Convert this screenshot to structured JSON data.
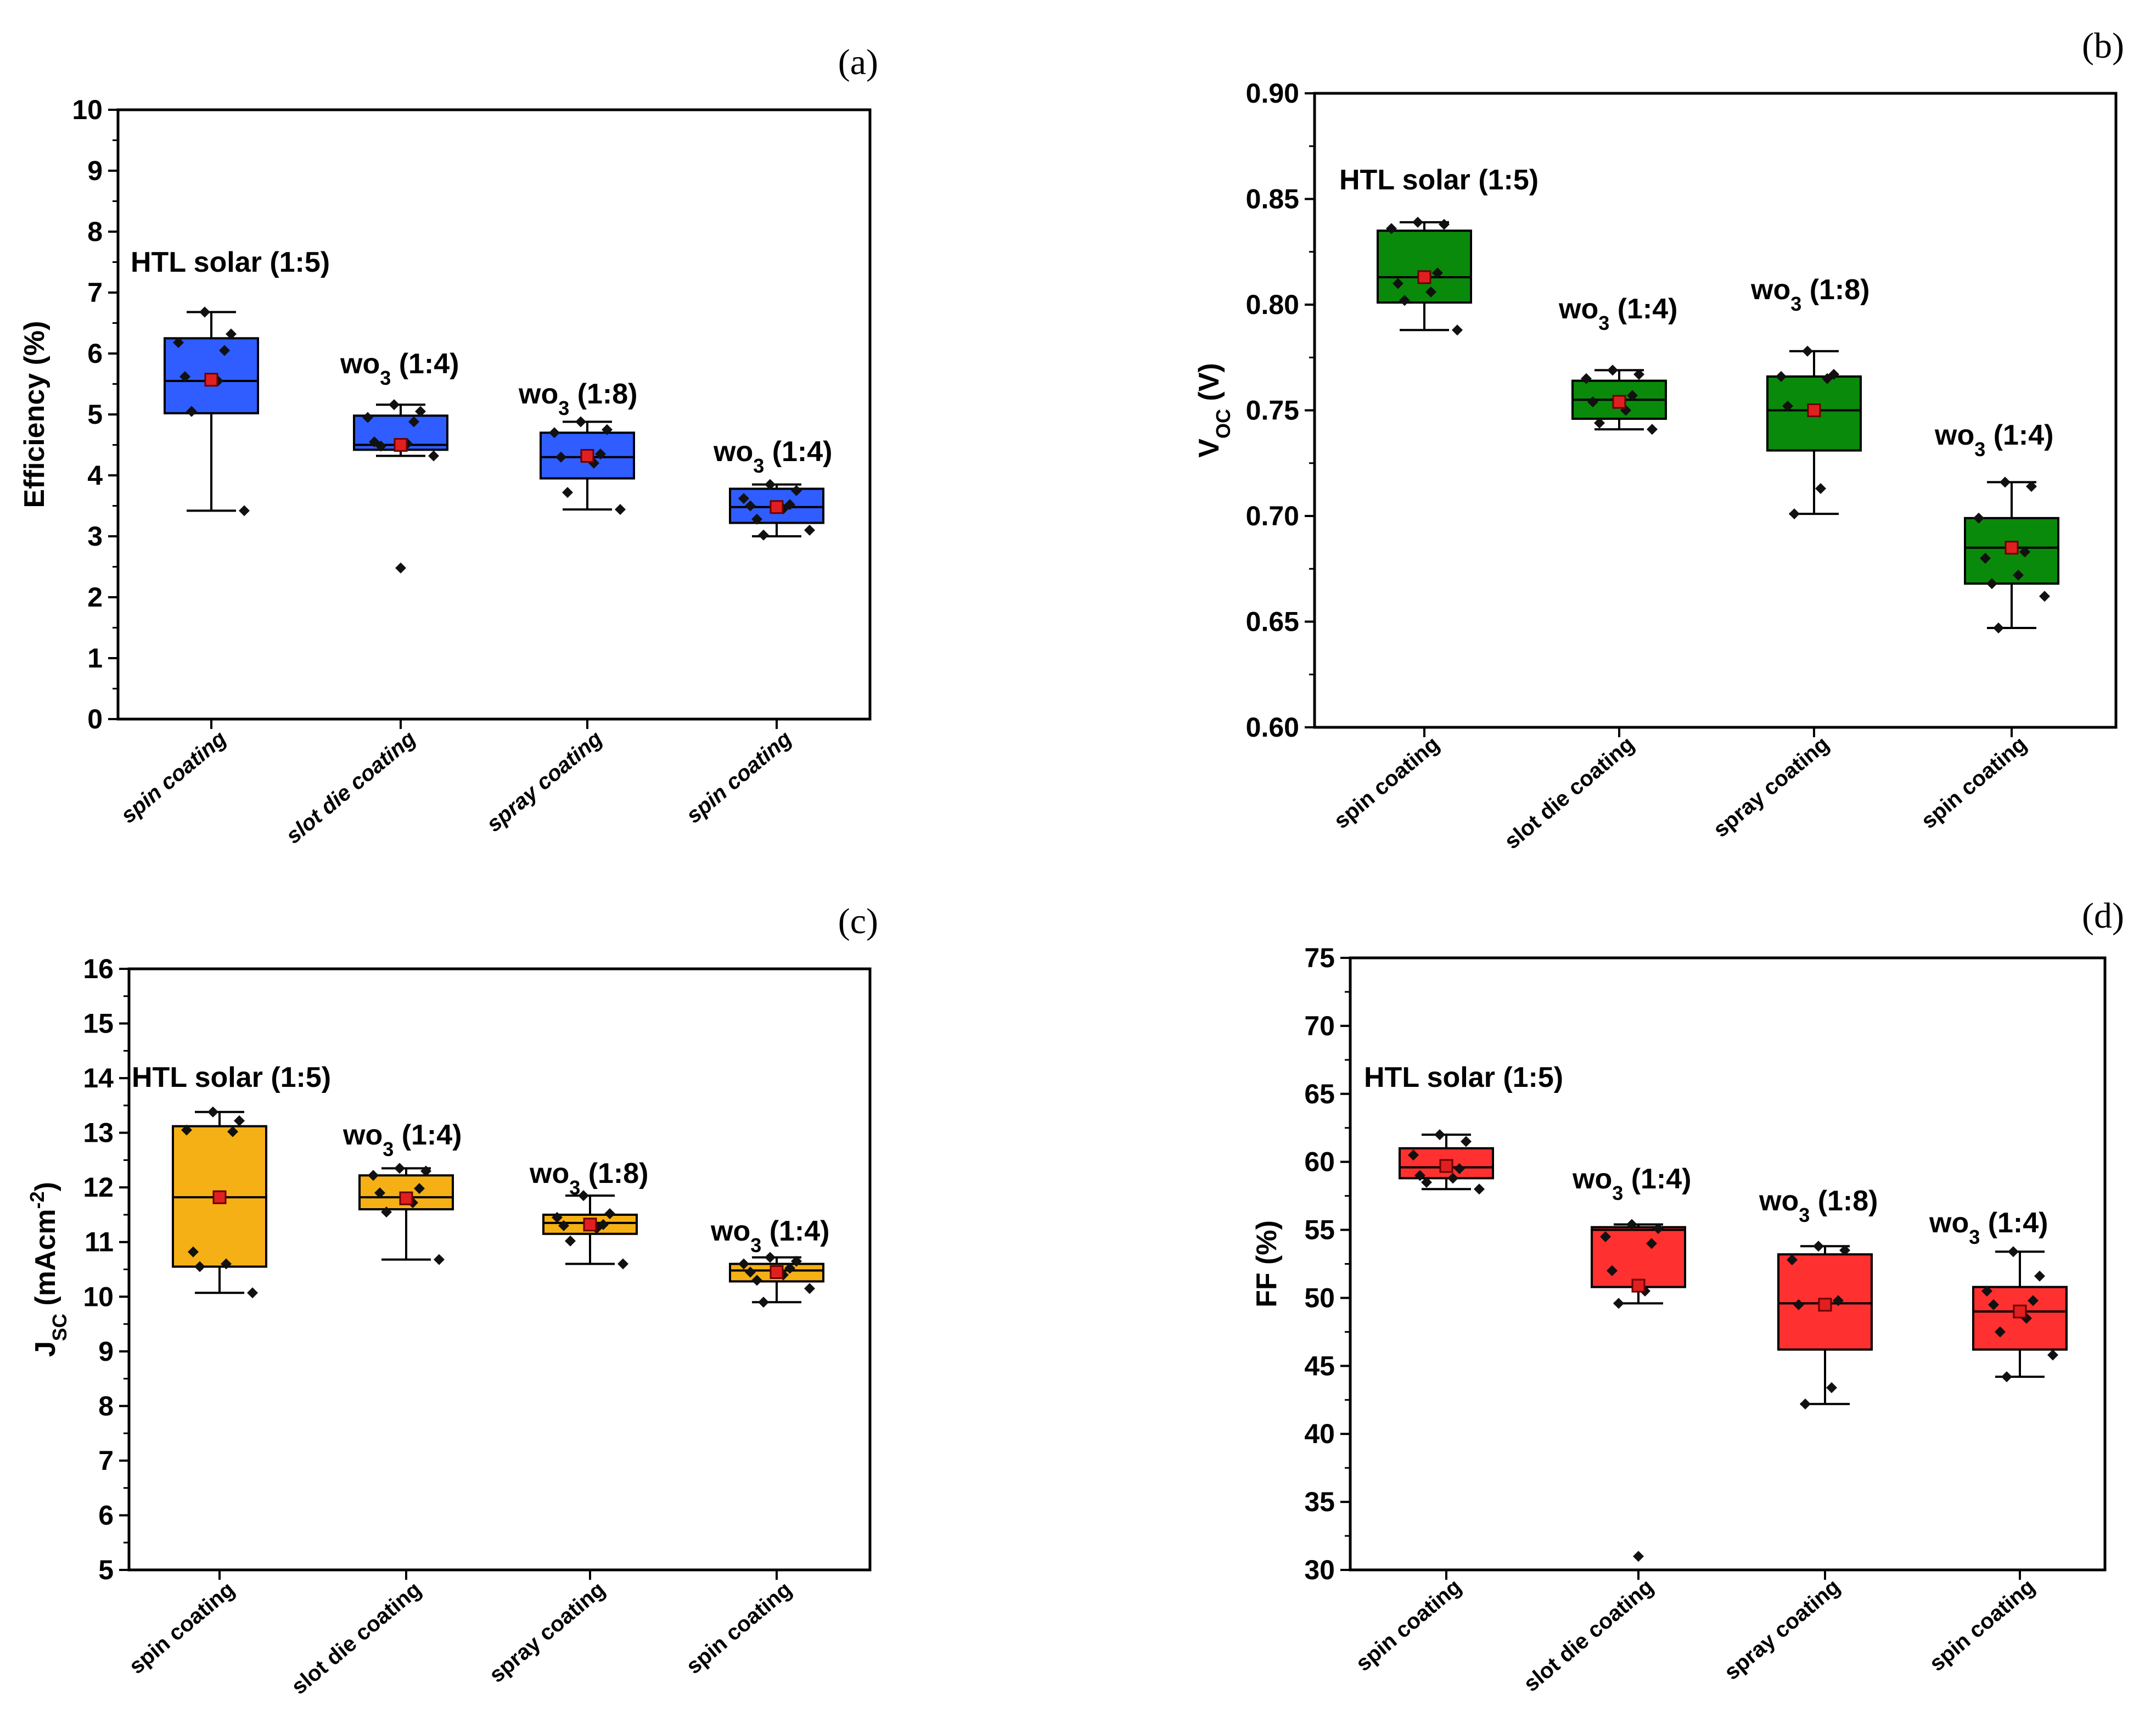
{
  "chart_data": [
    {
      "panel": "(a)",
      "type": "box",
      "ylabel": "Efficiency (%)",
      "ylim": [
        0,
        10
      ],
      "yticks": [
        "0",
        "1",
        "2",
        "3",
        "4",
        "5",
        "6",
        "7",
        "8",
        "9",
        "10"
      ],
      "categories": [
        "spin coating",
        "slot die coating",
        "spray coating",
        "spin coating"
      ],
      "category_style": "italic",
      "group_labels": [
        {
          "main": "HTL solar (1:5)",
          "sub": "",
          "suffix": ""
        },
        {
          "main": "wo",
          "sub": "3",
          "suffix": " (1:4)"
        },
        {
          "main": "wo",
          "sub": "3",
          "suffix": " (1:8)"
        },
        {
          "main": "wo",
          "sub": "3",
          "suffix": " (1:4)"
        }
      ],
      "box_color": "#2f5dff",
      "boxes": [
        {
          "q1": 5.02,
          "median": 5.55,
          "q3": 6.25,
          "mean": 5.57,
          "whisker_low": 3.42,
          "whisker_high": 6.68,
          "outliers": [],
          "points": [
            6.68,
            6.32,
            6.18,
            6.05,
            5.62,
            5.55,
            5.05,
            3.42
          ]
        },
        {
          "q1": 4.42,
          "median": 4.5,
          "q3": 4.98,
          "mean": 4.5,
          "whisker_low": 4.32,
          "whisker_high": 5.16,
          "outliers": [
            2.48
          ],
          "points": [
            5.16,
            5.05,
            4.95,
            4.88,
            4.55,
            4.52,
            4.48,
            4.32,
            2.48
          ]
        },
        {
          "q1": 3.95,
          "median": 4.3,
          "q3": 4.7,
          "mean": 4.32,
          "whisker_low": 3.44,
          "whisker_high": 4.88,
          "outliers": [],
          "points": [
            4.88,
            4.75,
            4.7,
            4.35,
            4.3,
            4.2,
            3.72,
            3.44
          ]
        },
        {
          "q1": 3.22,
          "median": 3.48,
          "q3": 3.78,
          "mean": 3.48,
          "whisker_low": 3.0,
          "whisker_high": 3.85,
          "outliers": [],
          "points": [
            3.85,
            3.75,
            3.62,
            3.52,
            3.5,
            3.45,
            3.28,
            3.1,
            3.02
          ]
        }
      ]
    },
    {
      "panel": "(b)",
      "type": "box",
      "ylabel_main": "V",
      "ylabel_sub": "OC",
      "ylabel_suffix": " (V)",
      "ylim": [
        0.6,
        0.9
      ],
      "yticks": [
        "0.60",
        "0.65",
        "0.70",
        "0.75",
        "0.80",
        "0.85",
        "0.90"
      ],
      "categories": [
        "spin coating",
        "slot die coating",
        "spray coating",
        "spin coating"
      ],
      "category_style": "normal",
      "group_labels": [
        {
          "main": "HTL solar (1:5)",
          "sub": "",
          "suffix": ""
        },
        {
          "main": "wo",
          "sub": "3",
          "suffix": " (1:4)"
        },
        {
          "main": "wo",
          "sub": "3",
          "suffix": " (1:8)"
        },
        {
          "main": "wo",
          "sub": "3",
          "suffix": " (1:4)"
        }
      ],
      "box_color": "#0a8a0a",
      "boxes": [
        {
          "q1": 0.801,
          "median": 0.813,
          "q3": 0.835,
          "mean": 0.813,
          "whisker_low": 0.788,
          "whisker_high": 0.839,
          "outliers": [],
          "points": [
            0.839,
            0.838,
            0.836,
            0.815,
            0.81,
            0.806,
            0.802,
            0.788
          ]
        },
        {
          "q1": 0.746,
          "median": 0.755,
          "q3": 0.764,
          "mean": 0.754,
          "whisker_low": 0.741,
          "whisker_high": 0.769,
          "outliers": [],
          "points": [
            0.769,
            0.767,
            0.765,
            0.757,
            0.754,
            0.75,
            0.744,
            0.741
          ]
        },
        {
          "q1": 0.731,
          "median": 0.75,
          "q3": 0.766,
          "mean": 0.75,
          "whisker_low": 0.701,
          "whisker_high": 0.778,
          "outliers": [],
          "points": [
            0.778,
            0.767,
            0.766,
            0.765,
            0.752,
            0.713,
            0.701
          ]
        },
        {
          "q1": 0.668,
          "median": 0.685,
          "q3": 0.699,
          "mean": 0.685,
          "whisker_low": 0.647,
          "whisker_high": 0.716,
          "outliers": [],
          "points": [
            0.716,
            0.714,
            0.699,
            0.683,
            0.68,
            0.672,
            0.668,
            0.662,
            0.647
          ]
        }
      ]
    },
    {
      "panel": "(c)",
      "type": "box",
      "ylabel_main": "J",
      "ylabel_sub": "SC",
      "ylabel_suffix": " (mAcm",
      "ylabel_sup": "-2",
      "ylabel_end": ")",
      "ylim": [
        5,
        16
      ],
      "yticks": [
        "5",
        "6",
        "7",
        "8",
        "9",
        "10",
        "11",
        "12",
        "13",
        "14",
        "15",
        "16"
      ],
      "categories": [
        "spin coating",
        "slot die coating",
        "spray coating",
        "spin coating"
      ],
      "category_style": "normal",
      "group_labels": [
        {
          "main": "HTL solar (1:5)",
          "sub": "",
          "suffix": ""
        },
        {
          "main": "wo",
          "sub": "3",
          "suffix": " (1:4)"
        },
        {
          "main": "wo",
          "sub": "3",
          "suffix": " (1:8)"
        },
        {
          "main": "wo",
          "sub": "3",
          "suffix": " (1:4)"
        }
      ],
      "box_color": "#f5b015",
      "boxes": [
        {
          "q1": 10.55,
          "median": 11.82,
          "q3": 13.12,
          "mean": 11.82,
          "whisker_low": 10.07,
          "whisker_high": 13.38,
          "outliers": [],
          "points": [
            13.38,
            13.22,
            13.05,
            13.02,
            10.82,
            10.6,
            10.55,
            10.07
          ]
        },
        {
          "q1": 11.6,
          "median": 11.82,
          "q3": 12.22,
          "mean": 11.8,
          "whisker_low": 10.68,
          "whisker_high": 12.35,
          "outliers": [],
          "points": [
            12.35,
            12.3,
            12.22,
            11.98,
            11.9,
            11.72,
            11.55,
            10.68
          ]
        },
        {
          "q1": 11.15,
          "median": 11.35,
          "q3": 11.5,
          "mean": 11.32,
          "whisker_low": 10.6,
          "whisker_high": 11.85,
          "outliers": [],
          "points": [
            11.85,
            11.52,
            11.45,
            11.32,
            11.3,
            11.25,
            11.02,
            10.6
          ]
        },
        {
          "q1": 10.28,
          "median": 10.48,
          "q3": 10.6,
          "mean": 10.45,
          "whisker_low": 9.9,
          "whisker_high": 10.72,
          "outliers": [],
          "points": [
            10.72,
            10.65,
            10.6,
            10.52,
            10.45,
            10.4,
            10.3,
            10.15,
            9.9
          ]
        }
      ]
    },
    {
      "panel": "(d)",
      "type": "box",
      "ylabel": "FF (%)",
      "ylim": [
        30,
        75
      ],
      "yticks": [
        "30",
        "35",
        "40",
        "45",
        "50",
        "55",
        "60",
        "65",
        "70",
        "75"
      ],
      "categories": [
        "spin coating",
        "slot die coating",
        "spray coating",
        "spin coating"
      ],
      "category_style": "normal",
      "group_labels": [
        {
          "main": "HTL solar (1:5)",
          "sub": "",
          "suffix": ""
        },
        {
          "main": "wo",
          "sub": "3",
          "suffix": " (1:4)"
        },
        {
          "main": "wo",
          "sub": "3",
          "suffix": " (1:8)"
        },
        {
          "main": "wo",
          "sub": "3",
          "suffix": " (1:4)"
        }
      ],
      "box_color": "#ff3030",
      "boxes": [
        {
          "q1": 58.8,
          "median": 59.6,
          "q3": 61.0,
          "mean": 59.7,
          "whisker_low": 58.0,
          "whisker_high": 62.0,
          "outliers": [],
          "points": [
            62.0,
            61.5,
            60.5,
            59.5,
            59.0,
            58.8,
            58.5,
            58.0
          ]
        },
        {
          "q1": 50.8,
          "median": 55.0,
          "q3": 55.2,
          "mean": 50.9,
          "whisker_low": 49.6,
          "whisker_high": 55.4,
          "outliers": [
            31.0
          ],
          "points": [
            55.4,
            55.1,
            54.5,
            54.0,
            52.0,
            50.5,
            49.6,
            31.0
          ]
        },
        {
          "q1": 46.2,
          "median": 49.6,
          "q3": 53.2,
          "mean": 49.5,
          "whisker_low": 42.2,
          "whisker_high": 53.8,
          "outliers": [],
          "points": [
            53.8,
            53.5,
            52.8,
            49.8,
            49.5,
            43.4,
            42.2
          ]
        },
        {
          "q1": 46.2,
          "median": 49.0,
          "q3": 50.8,
          "mean": 49.0,
          "whisker_low": 44.2,
          "whisker_high": 53.4,
          "outliers": [],
          "points": [
            53.4,
            51.6,
            50.5,
            49.8,
            49.5,
            48.5,
            47.5,
            45.8,
            44.2
          ]
        }
      ]
    }
  ]
}
